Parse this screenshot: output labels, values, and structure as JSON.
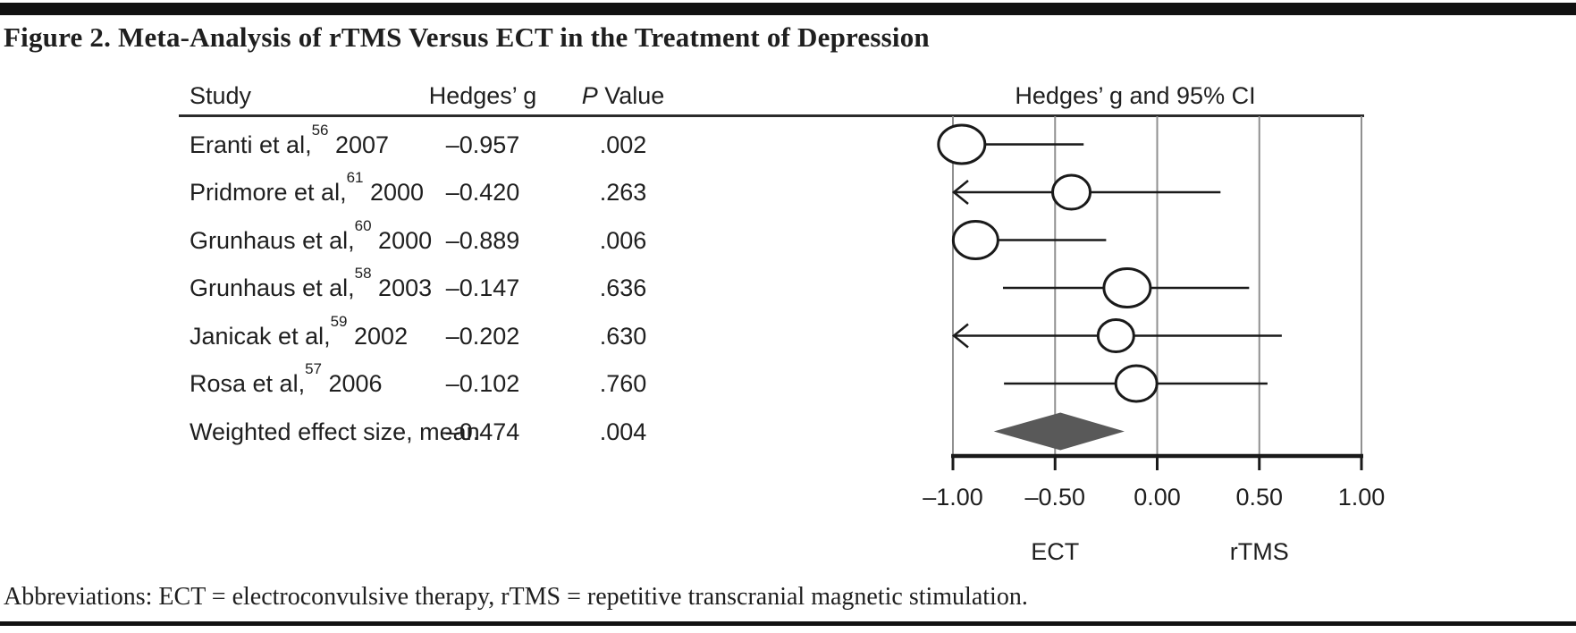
{
  "page": {
    "title": "Figure 2. Meta-Analysis of rTMS Versus ECT in the Treatment of Depression",
    "footer": "Abbreviations: ECT = electroconvulsive therapy, rTMS = repetitive transcranial magnetic stimulation."
  },
  "table": {
    "headers": {
      "study": "Study",
      "hedges_g": "Hedges’ g",
      "p_italic": "P",
      "p_rest": " Value",
      "ci": "Hedges’ g and 95% CI"
    }
  },
  "chart_data": {
    "type": "forest",
    "title": "Hedges’ g and 95% CI",
    "xlim": [
      -1.0,
      1.0
    ],
    "x_axis": {
      "ticks": [
        {
          "v": -1.0,
          "label": "–1.00"
        },
        {
          "v": -0.5,
          "label": "–0.50"
        },
        {
          "v": 0.0,
          "label": "0.00"
        },
        {
          "v": 0.5,
          "label": "0.50"
        },
        {
          "v": 1.0,
          "label": "1.00"
        }
      ],
      "label_left": "ECT",
      "label_right": "rTMS"
    },
    "studies": [
      {
        "author": "Eranti et al,",
        "ref": "56",
        "year": "2007",
        "g": -0.957,
        "g_text": "–0.957",
        "p_text": ".002",
        "ci_lo": -0.957,
        "ci_hi": -0.36,
        "clip_lo": false,
        "marker_w": 52,
        "marker_h": 43
      },
      {
        "author": "Pridmore et al,",
        "ref": "61",
        "year": "2000",
        "g": -0.42,
        "g_text": "–0.420",
        "p_text": ".263",
        "ci_lo": -1.0,
        "ci_hi": 0.31,
        "clip_lo": true,
        "marker_w": 42,
        "marker_h": 38
      },
      {
        "author": "Grunhaus et al,",
        "ref": "60",
        "year": "2000",
        "g": -0.889,
        "g_text": "–0.889",
        "p_text": ".006",
        "ci_lo": -0.889,
        "ci_hi": -0.25,
        "clip_lo": false,
        "marker_w": 50,
        "marker_h": 42
      },
      {
        "author": "Grunhaus et al,",
        "ref": "58",
        "year": "2003",
        "g": -0.147,
        "g_text": "–0.147",
        "p_text": ".636",
        "ci_lo": -0.755,
        "ci_hi": 0.45,
        "clip_lo": false,
        "marker_w": 52,
        "marker_h": 43
      },
      {
        "author": "Janicak et al,",
        "ref": "59",
        "year": "2002",
        "g": -0.202,
        "g_text": "–0.202",
        "p_text": ".630",
        "ci_lo": -1.0,
        "ci_hi": 0.61,
        "clip_lo": true,
        "marker_w": 40,
        "marker_h": 36
      },
      {
        "author": "Rosa et al,",
        "ref": "57",
        "year": "2006",
        "g": -0.102,
        "g_text": "–0.102",
        "p_text": ".760",
        "ci_lo": -0.75,
        "ci_hi": 0.54,
        "clip_lo": false,
        "marker_w": 46,
        "marker_h": 40
      }
    ],
    "summary": {
      "label": "Weighted effect size, mean",
      "g": -0.474,
      "g_text": "–0.474",
      "p_text": ".004",
      "ci_lo": -0.8,
      "ci_hi": -0.16,
      "half_height": 21
    },
    "colors": {
      "grid": "#909090",
      "line": "#1a1a1a",
      "diamond": "#595959",
      "marker_fill": "#ffffff"
    }
  }
}
